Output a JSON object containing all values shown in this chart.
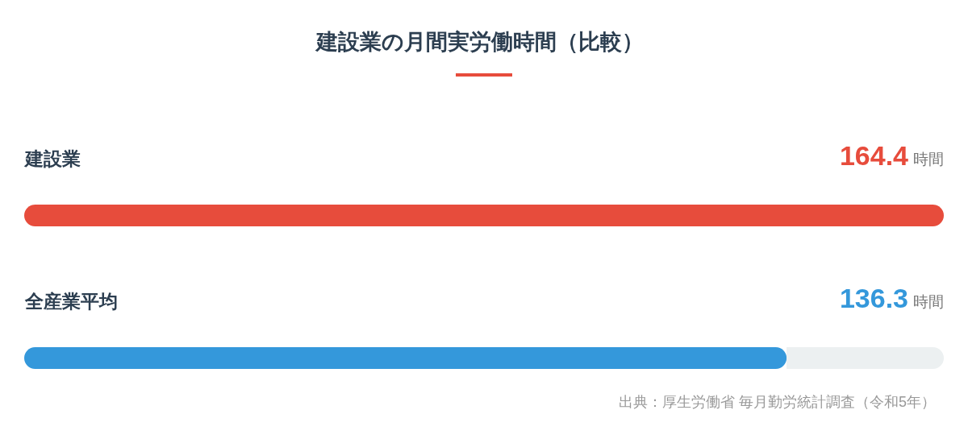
{
  "chart_data": {
    "type": "bar",
    "orientation": "horizontal",
    "title": "建設業の月間実労働時間（比較）",
    "categories": [
      "建設業",
      "全産業平均"
    ],
    "values": [
      164.4,
      136.3
    ],
    "colors": [
      "#e74c3c",
      "#3498db"
    ],
    "data_labels": true,
    "xlabel": "時間",
    "annotations": [
      "出典：厚生労働省 毎月勤労統計調査（令和5年）"
    ]
  }
}
